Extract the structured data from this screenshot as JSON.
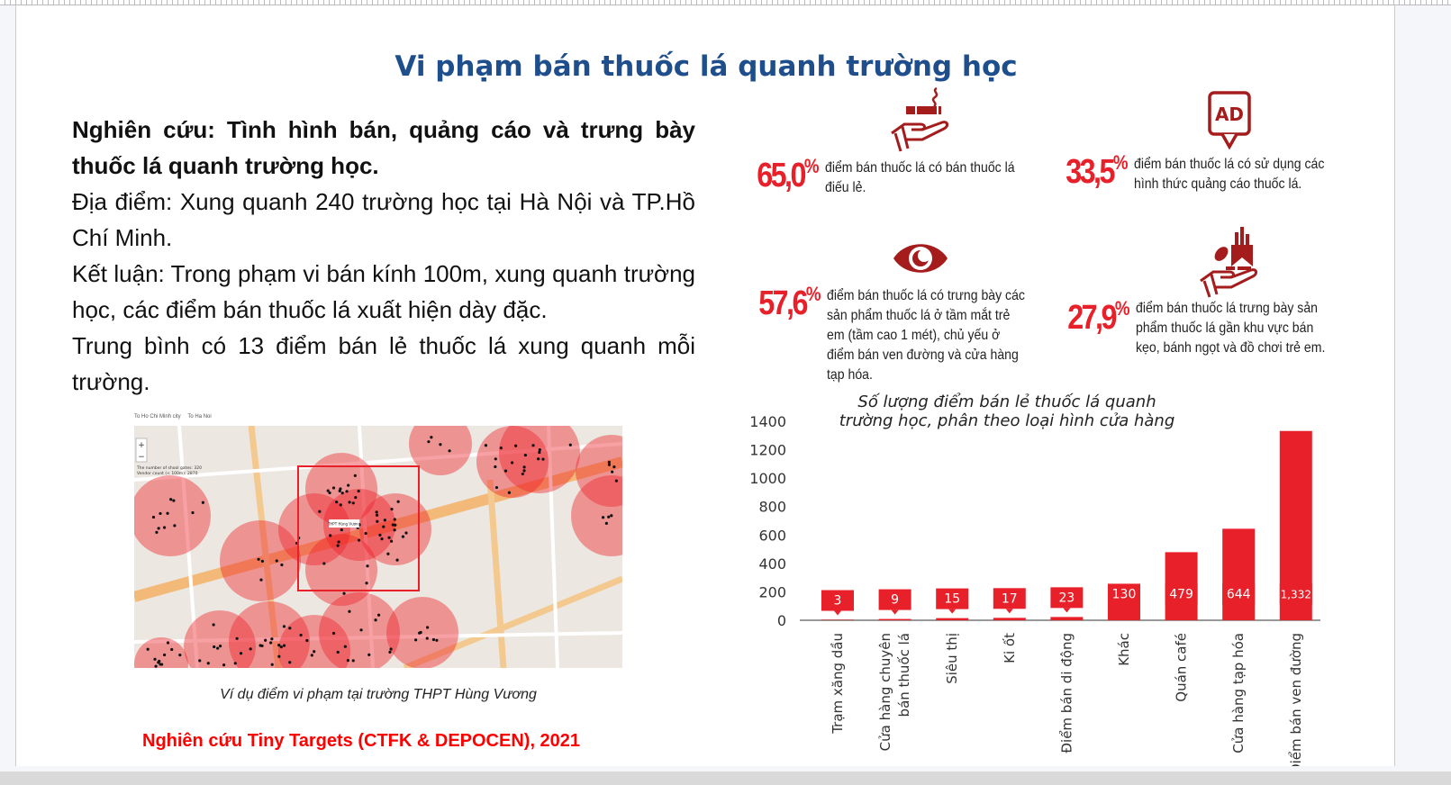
{
  "title": "Vi phạm bán thuốc lá quanh trường học",
  "intro": {
    "heading": "Nghiên cứu: Tình hình bán, quảng cáo và trưng bày thuốc lá quanh trường học.",
    "location": "Địa điểm: Xung quanh 240 trường học tại Hà Nội và TP.Hồ Chí Minh.",
    "conclusion": "Kết luận: Trong phạm vi bán kính 100m, xung quanh trường học, các điểm bán thuốc lá xuất hiện dày đặc.",
    "average": "Trung bình có 13 điểm bán lẻ thuốc lá xung quanh mỗi trường."
  },
  "stats": [
    {
      "value": "65,0",
      "unit": "%",
      "text": "điểm bán thuốc lá có bán thuốc lá điếu lẻ.",
      "icon": "hand-cigarette-icon"
    },
    {
      "value": "33,5",
      "unit": "%",
      "text": "điểm bán thuốc lá có sử dụng các hình thức quảng cáo thuốc lá.",
      "icon": "ad-speech-bubble-icon",
      "icon_text": "AD"
    },
    {
      "value": "57,6",
      "unit": "%",
      "text": "điểm bán thuốc lá có trưng bày các sản phẩm thuốc lá ở tầm mắt trẻ em (tầm cao 1 mét), chủ yếu ở điểm bán ven đường và cửa hàng tạp hóa.",
      "icon": "eye-icon"
    },
    {
      "value": "27,9",
      "unit": "%",
      "text": "điểm bán thuốc lá trưng bày sản phẩm thuốc lá gần khu vực bán kẹo, bánh ngọt và đồ chơi trẻ em.",
      "icon": "hand-candy-cigarettes-icon"
    }
  ],
  "map": {
    "tab1": "To Ho Chi Minh city",
    "tab2": "To Ha Noi",
    "info1": "The number of shool gates: 320",
    "info2": "Vendor count (< 100m): 2870",
    "school_label": "THPT Hùng Vương",
    "zoom_in": "+",
    "zoom_out": "−",
    "caption": "Ví dụ điểm vi phạm tại trường THPT Hùng Vương"
  },
  "source": "Nghiên cứu Tiny Targets (CTFK & DEPOCEN), 2021",
  "colors": {
    "title": "#1f4e8c",
    "accent": "#e8202a",
    "icon": "#a51c1c"
  },
  "chart_data": {
    "type": "bar",
    "title": "Số lượng điểm bán lẻ thuốc lá quanh trường học, phân theo loại hình cửa hàng",
    "title_lines": [
      "Số lượng điểm bán lẻ thuốc lá quanh",
      "trường học, phân theo loại hình cửa hàng"
    ],
    "categories": [
      "Trạm xăng dầu",
      "Cửa hàng chuyên bán thuốc lá",
      "Siêu thị",
      "Ki ốt",
      "Điểm bán di động",
      "Khác",
      "Quán café",
      "Cửa hàng tạp hóa",
      "Điểm bán ven đường"
    ],
    "category_lines": [
      [
        "Trạm xăng dầu"
      ],
      [
        "Cửa hàng chuyên",
        "bán thuốc lá"
      ],
      [
        "Siêu thị"
      ],
      [
        "Ki ốt"
      ],
      [
        "Điểm bán di động"
      ],
      [
        "Khác"
      ],
      [
        "Quán café"
      ],
      [
        "Cửa hàng tạp hóa"
      ],
      [
        "Điểm bán ven đường"
      ]
    ],
    "values": [
      3,
      9,
      15,
      17,
      23,
      130,
      479,
      644,
      1332
    ],
    "data_labels": [
      "3",
      "9",
      "15",
      "17",
      "23",
      "130",
      "479",
      "644",
      "1,332"
    ],
    "ylim": [
      0,
      1400
    ],
    "yticks": [
      0,
      200,
      400,
      600,
      800,
      1000,
      1200,
      1400
    ],
    "grid": false,
    "bar_color": "#e8202a"
  }
}
